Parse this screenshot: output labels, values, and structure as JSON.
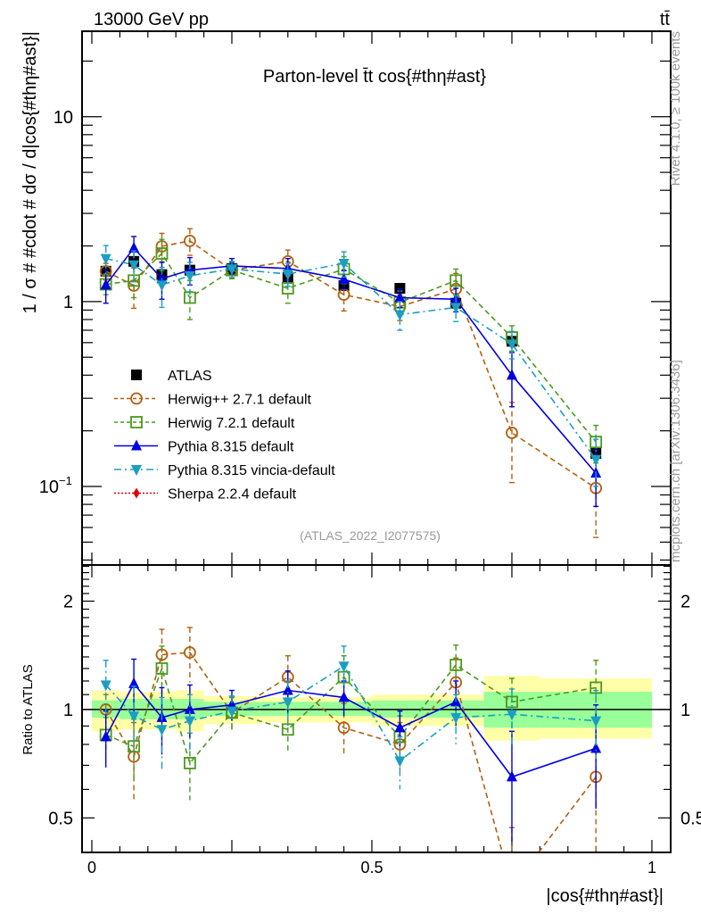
{
  "header": {
    "energy_label": "13000 GeV pp",
    "process_label": "tt̄"
  },
  "side_labels": {
    "rivet": "Rivet 4.1.0, ≥ 100k events",
    "source": "mcplots.cern.ch [arXiv:1306.3436]"
  },
  "chart_data": [
    {
      "type": "line",
      "panel": "main",
      "title": "Parton-level t̄t cos{#thη#ast}",
      "xlabel": "|cos{#thη#ast}|",
      "ylabel": "1 / σ # #cdot # dσ / d|cos{#thη#ast}|",
      "yscale": "log",
      "xlim": [
        -0.0175,
        1.0335
      ],
      "ylim": [
        0.0376,
        29
      ],
      "yticks": [
        {
          "value": 10,
          "label": "10"
        },
        {
          "value": 1,
          "label": "1"
        },
        {
          "value": 0.1,
          "label": "10^-1"
        }
      ],
      "annotation": "(ATLAS_2022_I2077575)",
      "legend_position": "lower-left",
      "x": [
        0.025,
        0.075,
        0.125,
        0.175,
        0.25,
        0.35,
        0.45,
        0.55,
        0.65,
        0.75,
        0.9
      ],
      "series": [
        {
          "name": "ATLAS",
          "color": "#000000",
          "marker": "square-filled",
          "line": "none",
          "values": [
            1.46,
            1.65,
            1.4,
            1.48,
            1.51,
            1.34,
            1.22,
            1.18,
            0.98,
            0.61,
            0.151
          ]
        },
        {
          "name": "Herwig++ 2.7.1 default",
          "color": "#b35f0f",
          "marker": "circle-open",
          "line": "dashed",
          "values": [
            1.46,
            1.22,
            1.99,
            2.13,
            1.48,
            1.65,
            1.09,
            0.94,
            1.17,
            0.195,
            0.098
          ],
          "err": [
            0.15,
            0.3,
            0.35,
            0.35,
            0.15,
            0.25,
            0.2,
            0.15,
            0.25,
            0.09,
            0.045
          ]
        },
        {
          "name": "Herwig 7.2.1 default",
          "color": "#4a9a1e",
          "marker": "square-open",
          "line": "dashed",
          "values": [
            1.24,
            1.3,
            1.82,
            1.05,
            1.48,
            1.18,
            1.5,
            0.99,
            1.3,
            0.64,
            0.174
          ],
          "err": [
            0.15,
            0.25,
            0.35,
            0.25,
            0.15,
            0.2,
            0.25,
            0.15,
            0.2,
            0.1,
            0.04
          ]
        },
        {
          "name": "Pythia 8.315 default",
          "color": "#0000e0",
          "marker": "triangle-up-filled",
          "line": "solid",
          "values": [
            1.23,
            1.95,
            1.33,
            1.48,
            1.56,
            1.51,
            1.32,
            1.05,
            1.03,
            0.4,
            0.118
          ],
          "err": [
            0.25,
            0.3,
            0.3,
            0.25,
            0.15,
            0.2,
            0.15,
            0.12,
            0.15,
            0.13,
            0.04
          ]
        },
        {
          "name": "Pythia 8.315 vincia-default",
          "color": "#1a9ec2",
          "marker": "triangle-down-filled",
          "line": "dashdot",
          "values": [
            1.71,
            1.58,
            1.23,
            1.38,
            1.5,
            1.41,
            1.61,
            0.85,
            0.93,
            0.59,
            0.14
          ],
          "err": [
            0.3,
            0.3,
            0.3,
            0.25,
            0.15,
            0.2,
            0.25,
            0.15,
            0.15,
            0.1,
            0.04
          ]
        },
        {
          "name": "Sherpa 2.2.4 default",
          "color": "#e00000",
          "marker": "diamond-filled",
          "line": "dotted",
          "values": []
        }
      ]
    },
    {
      "type": "line",
      "panel": "ratio",
      "ylabel": "Ratio to ATLAS",
      "xlabel": "|cos{#thη#ast}|",
      "yscale": "log",
      "xlim": [
        -0.0175,
        1.0335
      ],
      "ylim": [
        0.401,
        2.52
      ],
      "yticks": [
        {
          "value": 2,
          "label": "2"
        },
        {
          "value": 1,
          "label": "1"
        },
        {
          "value": 0.5,
          "label": "0.5"
        }
      ],
      "xticks": [
        {
          "value": 0,
          "label": "0"
        },
        {
          "value": 0.5,
          "label": "0.5"
        },
        {
          "value": 1,
          "label": "1"
        }
      ],
      "bins": [
        [
          0,
          0.05
        ],
        [
          0.05,
          0.1
        ],
        [
          0.1,
          0.15
        ],
        [
          0.15,
          0.2
        ],
        [
          0.2,
          0.3
        ],
        [
          0.3,
          0.4
        ],
        [
          0.4,
          0.5
        ],
        [
          0.5,
          0.6
        ],
        [
          0.6,
          0.7
        ],
        [
          0.7,
          0.8
        ],
        [
          0.8,
          1.0
        ]
      ],
      "band_stat": [
        [
          0.95,
          1.06
        ],
        [
          0.94,
          1.07
        ],
        [
          0.94,
          1.07
        ],
        [
          0.94,
          1.07
        ],
        [
          0.96,
          1.05
        ],
        [
          0.96,
          1.05
        ],
        [
          0.96,
          1.05
        ],
        [
          0.95,
          1.06
        ],
        [
          0.95,
          1.06
        ],
        [
          0.89,
          1.12
        ],
        [
          0.89,
          1.12
        ]
      ],
      "band_total": [
        [
          0.87,
          1.13
        ],
        [
          0.88,
          1.12
        ],
        [
          0.88,
          1.12
        ],
        [
          0.87,
          1.13
        ],
        [
          0.91,
          1.09
        ],
        [
          0.92,
          1.08
        ],
        [
          0.92,
          1.08
        ],
        [
          0.9,
          1.1
        ],
        [
          0.9,
          1.1
        ],
        [
          0.82,
          1.24
        ],
        [
          0.83,
          1.22
        ]
      ],
      "x": [
        0.025,
        0.075,
        0.125,
        0.175,
        0.25,
        0.35,
        0.45,
        0.55,
        0.65,
        0.75,
        0.9
      ],
      "series": [
        {
          "name": "Herwig++ 2.7.1 default",
          "values": [
            1.0,
            0.74,
            1.42,
            1.44,
            0.98,
            1.23,
            0.89,
            0.8,
            1.19,
            0.32,
            0.65
          ],
          "err": [
            0.1,
            0.18,
            0.25,
            0.25,
            0.1,
            0.18,
            0.15,
            0.12,
            0.2,
            0.15,
            0.28
          ]
        },
        {
          "name": "Herwig 7.2.1 default",
          "values": [
            0.85,
            0.79,
            1.3,
            0.71,
            0.98,
            0.88,
            1.23,
            0.84,
            1.33,
            1.05,
            1.15
          ],
          "err": [
            0.1,
            0.15,
            0.2,
            0.15,
            0.1,
            0.12,
            0.18,
            0.12,
            0.18,
            0.17,
            0.22
          ]
        },
        {
          "name": "Pythia 8.315 default",
          "values": [
            0.84,
            1.18,
            0.95,
            1.0,
            1.03,
            1.13,
            1.08,
            0.89,
            1.05,
            0.65,
            0.78
          ],
          "err": [
            0.15,
            0.2,
            0.2,
            0.17,
            0.1,
            0.15,
            0.12,
            0.1,
            0.15,
            0.22,
            0.25
          ]
        },
        {
          "name": "Pythia 8.315 vincia-default",
          "values": [
            1.17,
            0.96,
            0.88,
            0.93,
            0.99,
            1.05,
            1.32,
            0.72,
            0.95,
            0.97,
            0.93
          ],
          "err": [
            0.2,
            0.2,
            0.2,
            0.17,
            0.1,
            0.15,
            0.18,
            0.12,
            0.15,
            0.17,
            0.2
          ]
        }
      ]
    }
  ]
}
